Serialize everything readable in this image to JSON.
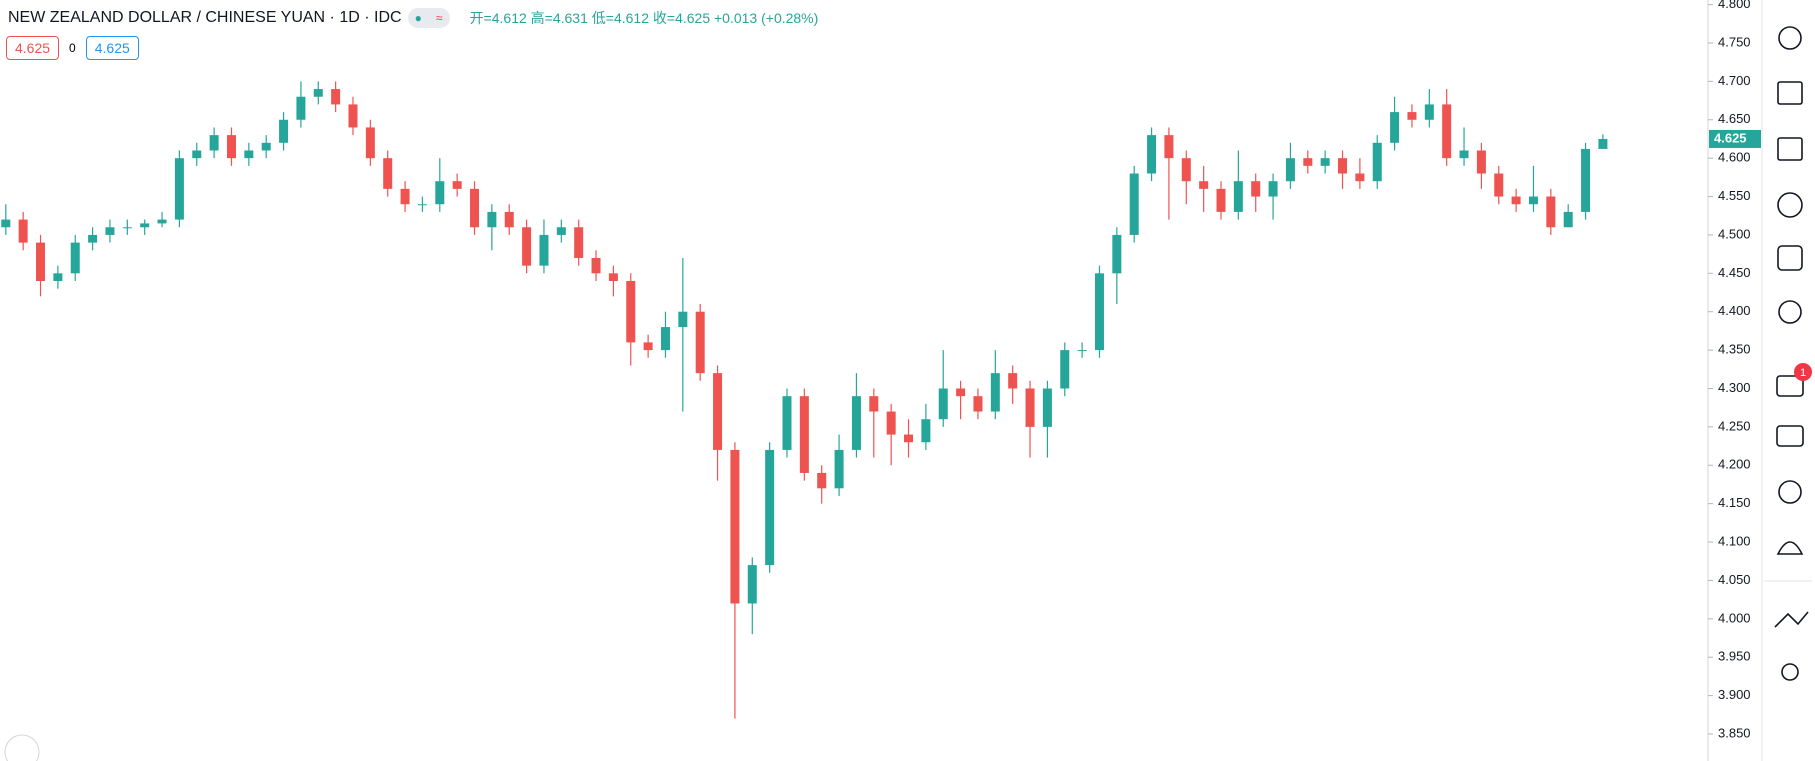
{
  "chart_data": {
    "type": "candlestick",
    "title": "NEW ZEALAND DOLLAR / CHINESE YUAN · 1D · IDC",
    "ohlc_legend": [
      "开=4.612",
      "高=4.631",
      "低=4.612",
      "收=4.625"
    ],
    "change": "+0.013 (+0.28%)",
    "order_panel": {
      "sell": "4.625",
      "spread": "0",
      "buy": "4.625"
    },
    "up_color": "#26a69a",
    "down_color": "#ef5350",
    "open": [
      4.51,
      4.52,
      4.49,
      4.44,
      4.45,
      4.49,
      4.5,
      4.51,
      4.51,
      4.515,
      4.52,
      4.6,
      4.61,
      4.63,
      4.6,
      4.61,
      4.62,
      4.65,
      4.68,
      4.69,
      4.67,
      4.64,
      4.6,
      4.56,
      4.54,
      4.54,
      4.57,
      4.56,
      4.51,
      4.53,
      4.51,
      4.46,
      4.5,
      4.51,
      4.47,
      4.45,
      4.44,
      4.36,
      4.35,
      4.38,
      4.4,
      4.32,
      4.22,
      4.02,
      4.07,
      4.22,
      4.29,
      4.19,
      4.17,
      4.22,
      4.29,
      4.27,
      4.24,
      4.23,
      4.26,
      4.3,
      4.29,
      4.27,
      4.32,
      4.3,
      4.25,
      4.3,
      4.35,
      4.35,
      4.45,
      4.5,
      4.58,
      4.63,
      4.6,
      4.57,
      4.56,
      4.53,
      4.57,
      4.55,
      4.57,
      4.6,
      4.59,
      4.6,
      4.58,
      4.57,
      4.62,
      4.66,
      4.65,
      4.67,
      4.6,
      4.61,
      4.58,
      4.55,
      4.54,
      4.55,
      4.51,
      4.53,
      4.612
    ],
    "high": [
      4.54,
      4.53,
      4.5,
      4.46,
      4.5,
      4.51,
      4.52,
      4.52,
      4.52,
      4.53,
      4.61,
      4.62,
      4.64,
      4.64,
      4.62,
      4.63,
      4.66,
      4.7,
      4.7,
      4.7,
      4.68,
      4.65,
      4.61,
      4.57,
      4.55,
      4.6,
      4.58,
      4.57,
      4.54,
      4.54,
      4.52,
      4.52,
      4.52,
      4.52,
      4.48,
      4.46,
      4.45,
      4.37,
      4.4,
      4.47,
      4.41,
      4.33,
      4.23,
      4.08,
      4.23,
      4.3,
      4.3,
      4.2,
      4.24,
      4.32,
      4.3,
      4.28,
      4.26,
      4.28,
      4.35,
      4.31,
      4.3,
      4.35,
      4.33,
      4.31,
      4.31,
      4.36,
      4.36,
      4.46,
      4.51,
      4.59,
      4.64,
      4.64,
      4.61,
      4.59,
      4.57,
      4.61,
      4.58,
      4.58,
      4.62,
      4.61,
      4.61,
      4.61,
      4.6,
      4.63,
      4.68,
      4.67,
      4.69,
      4.69,
      4.64,
      4.62,
      4.59,
      4.56,
      4.59,
      4.56,
      4.54,
      4.62,
      4.631
    ],
    "low": [
      4.5,
      4.48,
      4.42,
      4.43,
      4.44,
      4.48,
      4.49,
      4.5,
      4.5,
      4.51,
      4.51,
      4.59,
      4.6,
      4.59,
      4.59,
      4.6,
      4.61,
      4.64,
      4.67,
      4.66,
      4.63,
      4.59,
      4.55,
      4.53,
      4.53,
      4.53,
      4.55,
      4.5,
      4.48,
      4.5,
      4.45,
      4.45,
      4.49,
      4.46,
      4.44,
      4.42,
      4.33,
      4.34,
      4.34,
      4.27,
      4.31,
      4.18,
      3.87,
      3.98,
      4.06,
      4.21,
      4.18,
      4.15,
      4.16,
      4.21,
      4.21,
      4.2,
      4.21,
      4.22,
      4.25,
      4.26,
      4.26,
      4.26,
      4.28,
      4.21,
      4.21,
      4.29,
      4.34,
      4.34,
      4.41,
      4.49,
      4.57,
      4.52,
      4.54,
      4.53,
      4.52,
      4.52,
      4.53,
      4.52,
      4.56,
      4.58,
      4.58,
      4.56,
      4.56,
      4.56,
      4.61,
      4.64,
      4.64,
      4.59,
      4.59,
      4.56,
      4.54,
      4.53,
      4.53,
      4.5,
      4.51,
      4.52,
      4.612
    ],
    "close": [
      4.52,
      4.49,
      4.44,
      4.45,
      4.49,
      4.5,
      4.51,
      4.51,
      4.515,
      4.52,
      4.6,
      4.61,
      4.63,
      4.6,
      4.61,
      4.62,
      4.65,
      4.68,
      4.69,
      4.67,
      4.64,
      4.6,
      4.56,
      4.54,
      4.54,
      4.57,
      4.56,
      4.51,
      4.53,
      4.51,
      4.46,
      4.5,
      4.51,
      4.47,
      4.45,
      4.44,
      4.36,
      4.35,
      4.38,
      4.4,
      4.32,
      4.22,
      4.02,
      4.07,
      4.22,
      4.29,
      4.19,
      4.17,
      4.22,
      4.29,
      4.27,
      4.24,
      4.23,
      4.26,
      4.3,
      4.29,
      4.27,
      4.32,
      4.3,
      4.25,
      4.3,
      4.35,
      4.35,
      4.45,
      4.5,
      4.58,
      4.63,
      4.6,
      4.57,
      4.56,
      4.53,
      4.57,
      4.55,
      4.57,
      4.6,
      4.59,
      4.6,
      4.58,
      4.57,
      4.62,
      4.66,
      4.65,
      4.67,
      4.6,
      4.61,
      4.58,
      4.55,
      4.54,
      4.55,
      4.51,
      4.53,
      4.612,
      4.625
    ],
    "ylim": [
      3.85,
      4.8
    ],
    "yticks": [
      {
        "value": 3.85,
        "label": "3.850"
      },
      {
        "value": 3.9,
        "label": "3.900"
      },
      {
        "value": 3.95,
        "label": "3.950"
      },
      {
        "value": 4.0,
        "label": "4.000"
      },
      {
        "value": 4.05,
        "label": "4.050"
      },
      {
        "value": 4.1,
        "label": "4.100"
      },
      {
        "value": 4.15,
        "label": "4.150"
      },
      {
        "value": 4.2,
        "label": "4.200"
      },
      {
        "value": 4.25,
        "label": "4.250"
      },
      {
        "value": 4.3,
        "label": "4.300"
      },
      {
        "value": 4.35,
        "label": "4.350"
      },
      {
        "value": 4.4,
        "label": "4.400"
      },
      {
        "value": 4.45,
        "label": "4.450"
      },
      {
        "value": 4.5,
        "label": "4.500"
      },
      {
        "value": 4.55,
        "label": "4.550"
      },
      {
        "value": 4.6,
        "label": "4.600"
      },
      {
        "value": 4.65,
        "label": "4.650"
      },
      {
        "value": 4.7,
        "label": "4.700"
      },
      {
        "value": 4.75,
        "label": "4.750"
      },
      {
        "value": 4.8,
        "label": "4.800"
      }
    ],
    "last_price": {
      "value": 4.625,
      "label": "4.625"
    },
    "grid": false
  },
  "sidebar": {
    "badge": "1"
  }
}
